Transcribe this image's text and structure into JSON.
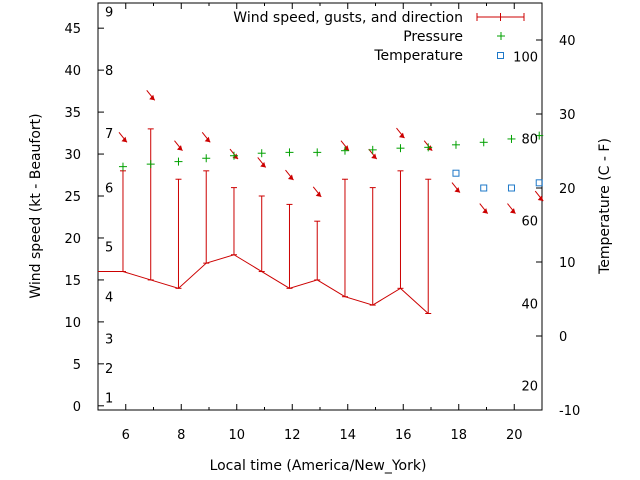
{
  "chart_data": {
    "type": "line",
    "xlabel": "Local time (America/New_York)",
    "ylabel": "Wind speed (kt - Beaufort)",
    "y2label": "Temperature (C - F)",
    "xlim": [
      5,
      21
    ],
    "ylim": [
      -0.5,
      48
    ],
    "y2lim": [
      -10,
      45
    ],
    "xticks": [
      6,
      8,
      10,
      12,
      14,
      16,
      18,
      20
    ],
    "yticks": [
      0,
      5,
      10,
      15,
      20,
      25,
      30,
      35,
      40,
      45
    ],
    "y2ticks": [
      -10,
      0,
      10,
      20,
      30,
      40
    ],
    "beaufort_labels": [
      {
        "label": "1",
        "at": 1
      },
      {
        "label": "2",
        "at": 4.5
      },
      {
        "label": "3",
        "at": 8
      },
      {
        "label": "4",
        "at": 13
      },
      {
        "label": "5",
        "at": 19
      },
      {
        "label": "6",
        "at": 26
      },
      {
        "label": "7",
        "at": 32.5
      },
      {
        "label": "8",
        "at": 40
      },
      {
        "label": "9",
        "at": 47
      }
    ],
    "fahrenheit_labels": [
      {
        "label": "20",
        "at": -6.7
      },
      {
        "label": "40",
        "at": 4.4
      },
      {
        "label": "60",
        "at": 15.6
      },
      {
        "label": "80",
        "at": 26.7
      },
      {
        "label": "100",
        "at": 37.8
      }
    ],
    "legend": {
      "position": "top-right",
      "wind": "Wind speed, gusts, and direction",
      "pressure": "Pressure",
      "temperature": "Temperature"
    },
    "colors": {
      "wind": "#cc0000",
      "pressure": "#00a000",
      "temperature": "#1e78c8"
    },
    "wind": [
      {
        "x": 5.0,
        "speed": 16,
        "gust": null
      },
      {
        "x": 5.9,
        "speed": 16,
        "gust": 28
      },
      {
        "x": 6.9,
        "speed": 15,
        "gust": 33
      },
      {
        "x": 7.9,
        "speed": 14,
        "gust": 27
      },
      {
        "x": 8.9,
        "speed": 17,
        "gust": 28
      },
      {
        "x": 9.9,
        "speed": 18,
        "gust": 26
      },
      {
        "x": 10.9,
        "speed": 16,
        "gust": 25
      },
      {
        "x": 11.9,
        "speed": 14,
        "gust": 24
      },
      {
        "x": 12.9,
        "speed": 15,
        "gust": 22
      },
      {
        "x": 13.9,
        "speed": 13,
        "gust": 27
      },
      {
        "x": 14.9,
        "speed": 12,
        "gust": 26
      },
      {
        "x": 15.9,
        "speed": 14,
        "gust": 28
      },
      {
        "x": 16.9,
        "speed": 11,
        "gust": 27
      }
    ],
    "direction_arrows": [
      {
        "x": 5.9,
        "y": 32
      },
      {
        "x": 6.9,
        "y": 37
      },
      {
        "x": 7.9,
        "y": 31
      },
      {
        "x": 8.9,
        "y": 32
      },
      {
        "x": 9.9,
        "y": 30
      },
      {
        "x": 10.9,
        "y": 29
      },
      {
        "x": 11.9,
        "y": 27.5
      },
      {
        "x": 12.9,
        "y": 25.5
      },
      {
        "x": 13.9,
        "y": 31
      },
      {
        "x": 14.9,
        "y": 30
      },
      {
        "x": 15.9,
        "y": 32.5
      },
      {
        "x": 16.9,
        "y": 31
      },
      {
        "x": 17.9,
        "y": 26
      },
      {
        "x": 18.9,
        "y": 23.5
      },
      {
        "x": 19.9,
        "y": 23.5
      },
      {
        "x": 20.9,
        "y": 25
      }
    ],
    "pressure": [
      {
        "x": 5.9,
        "y": 28.5
      },
      {
        "x": 6.9,
        "y": 28.8
      },
      {
        "x": 7.9,
        "y": 29.1
      },
      {
        "x": 8.9,
        "y": 29.5
      },
      {
        "x": 9.9,
        "y": 29.8
      },
      {
        "x": 10.9,
        "y": 30.1
      },
      {
        "x": 11.9,
        "y": 30.2
      },
      {
        "x": 12.9,
        "y": 30.2
      },
      {
        "x": 13.9,
        "y": 30.4
      },
      {
        "x": 14.9,
        "y": 30.5
      },
      {
        "x": 15.9,
        "y": 30.7
      },
      {
        "x": 16.9,
        "y": 30.8
      },
      {
        "x": 17.9,
        "y": 31.1
      },
      {
        "x": 18.9,
        "y": 31.4
      },
      {
        "x": 19.9,
        "y": 31.8
      },
      {
        "x": 20.9,
        "y": 32.2
      }
    ],
    "temperature": [
      {
        "x": 17.9,
        "y": 22.0
      },
      {
        "x": 18.9,
        "y": 20.0
      },
      {
        "x": 19.9,
        "y": 20.0
      },
      {
        "x": 20.9,
        "y": 20.7
      }
    ]
  }
}
